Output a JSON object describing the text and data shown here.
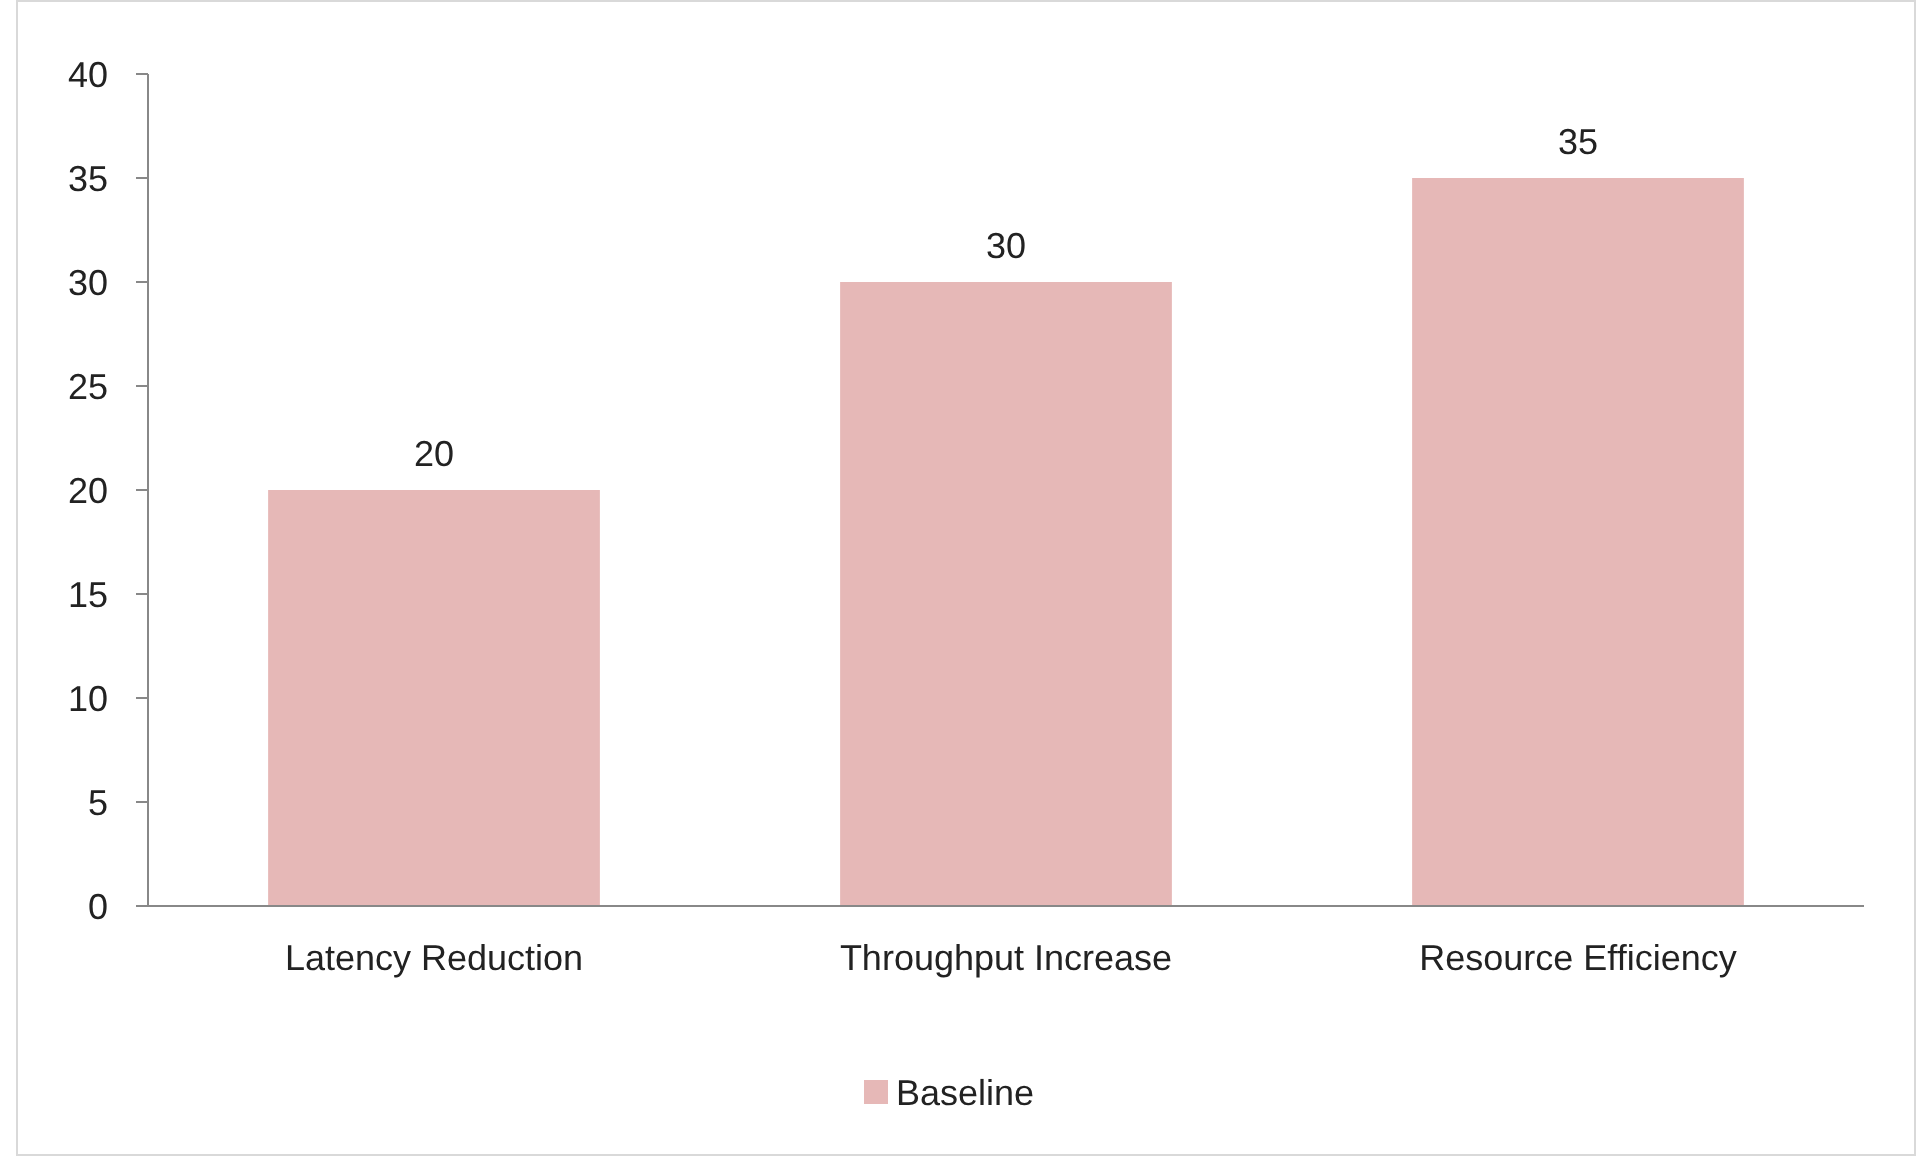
{
  "chart_data": {
    "type": "bar",
    "categories": [
      "Latency Reduction",
      "Throughput Increase",
      "Resource Efficiency"
    ],
    "series": [
      {
        "name": "Baseline",
        "color": "#e6b8b7",
        "values": [
          20,
          30,
          35
        ]
      }
    ],
    "ylim": [
      0,
      40
    ],
    "yticks": [
      0,
      5,
      10,
      15,
      20,
      25,
      30,
      35,
      40
    ],
    "data_labels": true,
    "legend": "bottom",
    "grid": false
  }
}
